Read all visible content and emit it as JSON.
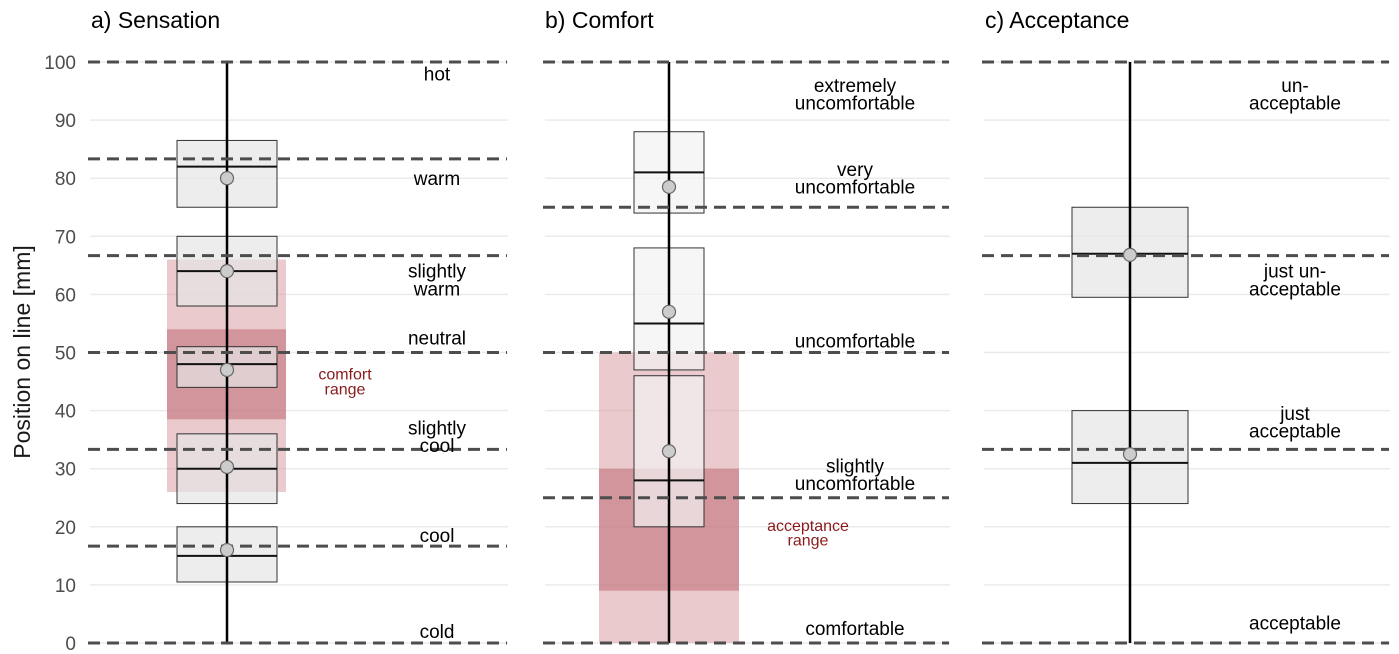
{
  "ylabel": "Position on line [mm]",
  "yticks": [
    0,
    10,
    20,
    30,
    40,
    50,
    60,
    70,
    80,
    90,
    100
  ],
  "colors": {
    "box_fill": "#e6e6e6",
    "box_fill_light": "#f2f2f2",
    "box_stroke": "#333333",
    "median": "#111111",
    "dashed": "#4d4d4d",
    "grid": "#ebebeb",
    "range_light": "#d99ea3",
    "range_dark": "#c0717a",
    "range_text": "#8b1a1a",
    "point_fill": "#cccccc",
    "point_stroke": "#666666"
  },
  "chart_data": [
    {
      "type": "boxplot",
      "title": "a) Sensation",
      "ylim": [
        0,
        100
      ],
      "dashed_lines": [
        0,
        16.67,
        33.33,
        50,
        66.67,
        83.33,
        100
      ],
      "category_labels": [
        {
          "text": "hot",
          "y": 98
        },
        {
          "text": "warm",
          "y": 80
        },
        {
          "text": "slightly\nwarm",
          "y": 62.5
        },
        {
          "text": "neutral",
          "y": 52.5
        },
        {
          "text": "slightly\ncool",
          "y": 35.5
        },
        {
          "text": "cool",
          "y": 18.5
        },
        {
          "text": "cold",
          "y": 2
        }
      ],
      "whisker": [
        0,
        100
      ],
      "boxes": [
        {
          "q1": 75,
          "median": 82,
          "q3": 86.5,
          "mean": 80
        },
        {
          "q1": 58,
          "median": 64,
          "q3": 70,
          "mean": 64
        },
        {
          "q1": 44,
          "median": 48,
          "q3": 51,
          "mean": 47
        },
        {
          "q1": 24,
          "median": 30,
          "q3": 36,
          "mean": 30.3
        },
        {
          "q1": 10.5,
          "median": 15,
          "q3": 20,
          "mean": 16
        }
      ],
      "range": {
        "label": "comfort\nrange",
        "light": [
          26,
          66
        ],
        "dark": [
          38.5,
          54
        ],
        "label_y": 45
      }
    },
    {
      "type": "boxplot",
      "title": "b) Comfort",
      "ylim": [
        0,
        100
      ],
      "dashed_lines": [
        0,
        25,
        50,
        75,
        100
      ],
      "category_labels": [
        {
          "text": "extremely\nuncomfortable",
          "y": 94.5
        },
        {
          "text": "very\nuncomfortable",
          "y": 80
        },
        {
          "text": "uncomfortable",
          "y": 52
        },
        {
          "text": "slightly\nuncomfortable",
          "y": 29
        },
        {
          "text": "comfortable",
          "y": 2.5
        }
      ],
      "whisker": [
        0,
        100
      ],
      "boxes": [
        {
          "q1": 74,
          "median": 81,
          "q3": 88,
          "mean": 78.5
        },
        {
          "q1": 47,
          "median": 55,
          "q3": 68,
          "mean": 57
        },
        {
          "q1": 20,
          "median": 28,
          "q3": 46,
          "mean": 33
        }
      ],
      "range": {
        "label": "acceptance\nrange",
        "light": [
          0,
          50
        ],
        "dark": [
          9,
          30
        ],
        "label_y": 19
      }
    },
    {
      "type": "boxplot",
      "title": "c) Acceptance",
      "ylim": [
        0,
        100
      ],
      "dashed_lines": [
        0,
        33.33,
        66.67,
        100
      ],
      "category_labels": [
        {
          "text": "un-\nacceptable",
          "y": 94.5
        },
        {
          "text": "just un-\nacceptable",
          "y": 62.5
        },
        {
          "text": "just\nacceptable",
          "y": 38
        },
        {
          "text": "acceptable",
          "y": 3.5
        }
      ],
      "whisker": [
        0,
        100
      ],
      "boxes": [
        {
          "q1": 59.5,
          "median": 67,
          "q3": 75,
          "mean": 66.8
        },
        {
          "q1": 24,
          "median": 31,
          "q3": 40,
          "mean": 32.5
        }
      ],
      "range": null
    }
  ]
}
